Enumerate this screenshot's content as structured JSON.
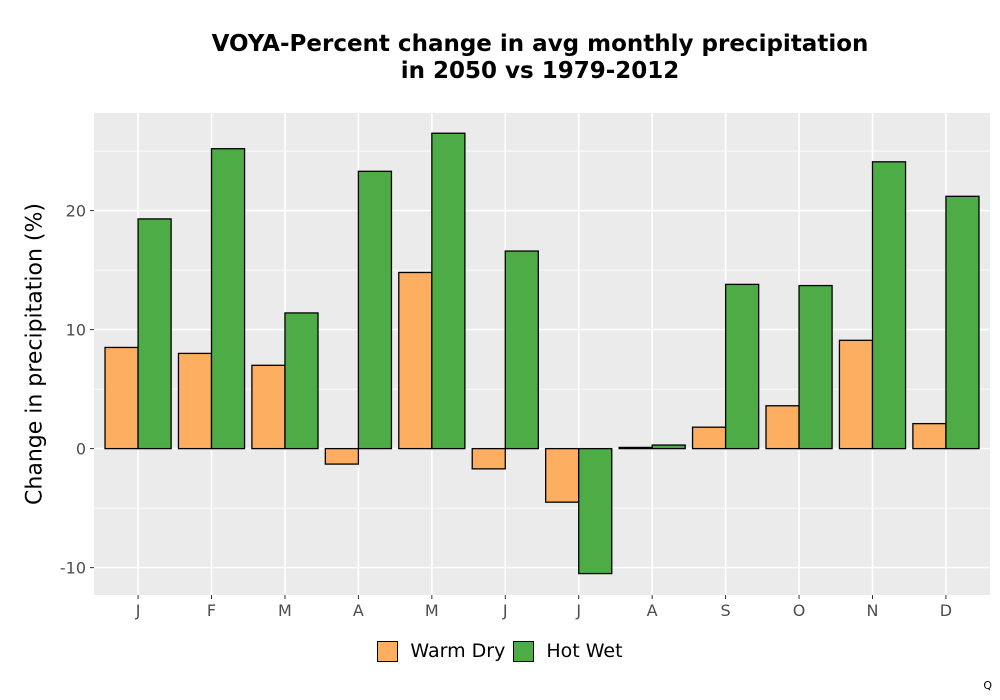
{
  "chart_data": {
    "type": "bar",
    "title_line1": "VOYA-Percent change in avg monthly precipitation",
    "title_line2": "in 2050 vs 1979-2012",
    "xlabel": "",
    "ylabel": "Change in precipitation (%)",
    "ylim": [
      -12.3,
      28.2
    ],
    "yticks": [
      -10,
      0,
      10,
      20
    ],
    "ytick_labels": [
      "-10",
      "0",
      "10",
      "20"
    ],
    "grid": true,
    "legend_position": "bottom",
    "categories": [
      "J",
      "F",
      "M",
      "A",
      "M",
      "J",
      "J",
      "A",
      "S",
      "O",
      "N",
      "D"
    ],
    "series": [
      {
        "name": "Warm Dry",
        "color": "#FDAE61",
        "values": [
          8.5,
          8.0,
          7.0,
          -1.3,
          14.8,
          -1.7,
          -4.5,
          0.1,
          1.8,
          3.6,
          9.1,
          2.1
        ]
      },
      {
        "name": "Hot Wet",
        "color": "#4DAC45",
        "values": [
          19.3,
          25.2,
          11.4,
          23.3,
          26.5,
          16.6,
          -10.5,
          0.3,
          13.8,
          13.7,
          24.1,
          21.2
        ]
      }
    ]
  },
  "footer_mark": "Q"
}
